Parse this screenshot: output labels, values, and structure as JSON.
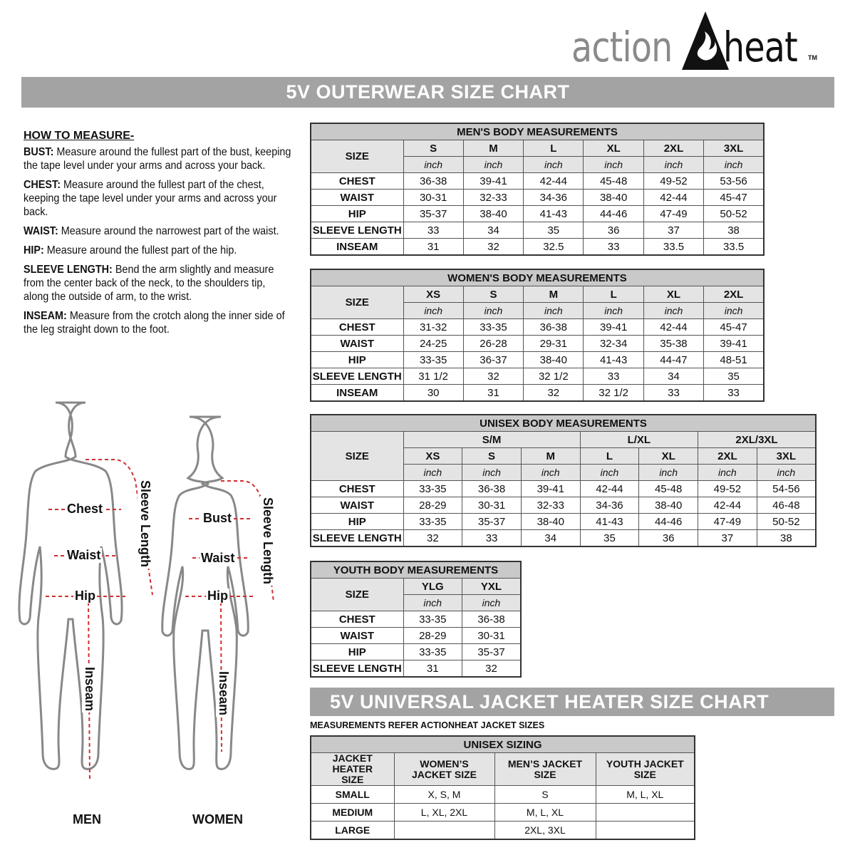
{
  "logo": {
    "text_left": "action",
    "text_right": "heat",
    "tm": "TM"
  },
  "banner_title": "5V OUTERWEAR SIZE CHART",
  "how_to": {
    "heading": "HOW TO MEASURE-",
    "items": [
      {
        "term": "BUST:",
        "desc": "Measure around the fullest part of the bust, keeping the tape level under your arms and across your back."
      },
      {
        "term": "CHEST:",
        "desc": "Measure around the fullest part of the chest, keeping the tape level under your arms and across your back."
      },
      {
        "term": "WAIST:",
        "desc": "Measure around the narrowest part of the waist."
      },
      {
        "term": "HIP:",
        "desc": "Measure around the fullest part of the hip."
      },
      {
        "term": "SLEEVE LENGTH:",
        "desc": "Bend the arm slightly and measure from the center back of the neck, to the shoulders tip, along the outside of arm, to the wrist."
      },
      {
        "term": "INSEAM:",
        "desc": "Measure from the crotch along the inner side of the leg straight down to the foot."
      }
    ]
  },
  "figures": {
    "men": {
      "caption": "MEN",
      "chest": "Chest",
      "waist": "Waist",
      "hip": "Hip",
      "sleeve": "Sleeve Length",
      "inseam": "Inseam"
    },
    "women": {
      "caption": "WOMEN",
      "bust": "Bust",
      "waist": "Waist",
      "hip": "Hip",
      "sleeve": "Sleeve Length",
      "inseam": "Inseam"
    },
    "arrow_color": "#d32f2f"
  },
  "tables": {
    "men": {
      "title": "MEN'S BODY MEASUREMENTS",
      "size_label": "SIZE",
      "unit": "inch",
      "sizes": [
        "S",
        "M",
        "L",
        "XL",
        "2XL",
        "3XL"
      ],
      "rows": [
        {
          "label": "CHEST",
          "values": [
            "36-38",
            "39-41",
            "42-44",
            "45-48",
            "49-52",
            "53-56"
          ]
        },
        {
          "label": "WAIST",
          "values": [
            "30-31",
            "32-33",
            "34-36",
            "38-40",
            "42-44",
            "45-47"
          ]
        },
        {
          "label": "HIP",
          "values": [
            "35-37",
            "38-40",
            "41-43",
            "44-46",
            "47-49",
            "50-52"
          ]
        },
        {
          "label": "SLEEVE LENGTH",
          "values": [
            "33",
            "34",
            "35",
            "36",
            "37",
            "38"
          ]
        },
        {
          "label": "INSEAM",
          "values": [
            "31",
            "32",
            "32.5",
            "33",
            "33.5",
            "33.5"
          ]
        }
      ]
    },
    "women": {
      "title": "WOMEN'S BODY MEASUREMENTS",
      "size_label": "SIZE",
      "unit": "inch",
      "sizes": [
        "XS",
        "S",
        "M",
        "L",
        "XL",
        "2XL"
      ],
      "rows": [
        {
          "label": "CHEST",
          "values": [
            "31-32",
            "33-35",
            "36-38",
            "39-41",
            "42-44",
            "45-47"
          ]
        },
        {
          "label": "WAIST",
          "values": [
            "24-25",
            "26-28",
            "29-31",
            "32-34",
            "35-38",
            "39-41"
          ]
        },
        {
          "label": "HIP",
          "values": [
            "33-35",
            "36-37",
            "38-40",
            "41-43",
            "44-47",
            "48-51"
          ]
        },
        {
          "label": "SLEEVE LENGTH",
          "values": [
            "31 1/2",
            "32",
            "32 1/2",
            "33",
            "34",
            "35"
          ]
        },
        {
          "label": "INSEAM",
          "values": [
            "30",
            "31",
            "32",
            "32 1/2",
            "33",
            "33"
          ]
        }
      ]
    },
    "unisex": {
      "title": "UNISEX BODY MEASUREMENTS",
      "size_label": "SIZE",
      "unit": "inch",
      "groups": [
        {
          "label": "S/M",
          "span": 3
        },
        {
          "label": "L/XL",
          "span": 2
        },
        {
          "label": "2XL/3XL",
          "span": 2
        }
      ],
      "sizes": [
        "XS",
        "S",
        "M",
        "L",
        "XL",
        "2XL",
        "3XL"
      ],
      "rows": [
        {
          "label": "CHEST",
          "values": [
            "33-35",
            "36-38",
            "39-41",
            "42-44",
            "45-48",
            "49-52",
            "54-56"
          ]
        },
        {
          "label": "WAIST",
          "values": [
            "28-29",
            "30-31",
            "32-33",
            "34-36",
            "38-40",
            "42-44",
            "46-48"
          ]
        },
        {
          "label": "HIP",
          "values": [
            "33-35",
            "35-37",
            "38-40",
            "41-43",
            "44-46",
            "47-49",
            "50-52"
          ]
        },
        {
          "label": "SLEEVE LENGTH",
          "values": [
            "32",
            "33",
            "34",
            "35",
            "36",
            "37",
            "38"
          ]
        }
      ]
    },
    "youth": {
      "title": "YOUTH BODY MEASUREMENTS",
      "size_label": "SIZE",
      "unit": "inch",
      "sizes": [
        "YLG",
        "YXL"
      ],
      "rows": [
        {
          "label": "CHEST",
          "values": [
            "33-35",
            "36-38"
          ]
        },
        {
          "label": "WAIST",
          "values": [
            "28-29",
            "30-31"
          ]
        },
        {
          "label": "HIP",
          "values": [
            "33-35",
            "35-37"
          ]
        },
        {
          "label": "SLEEVE LENGTH",
          "values": [
            "31",
            "32"
          ]
        }
      ]
    }
  },
  "heater": {
    "banner_title": "5V UNIVERSAL JACKET HEATER SIZE CHART",
    "note": "MEASUREMENTS REFER ACTIONHEAT JACKET SIZES",
    "table_title": "UNISEX SIZING",
    "headers": [
      "JACKET HEATER SIZE",
      "WOMEN’S JACKET SIZE",
      "MEN’S JACKET SIZE",
      "YOUTH JACKET SIZE"
    ],
    "rows": [
      [
        "SMALL",
        "X, S, M",
        "S",
        "M, L, XL"
      ],
      [
        "MEDIUM",
        "L, XL, 2XL",
        "M, L, XL",
        ""
      ],
      [
        "LARGE",
        "",
        "2XL, 3XL",
        ""
      ]
    ]
  }
}
